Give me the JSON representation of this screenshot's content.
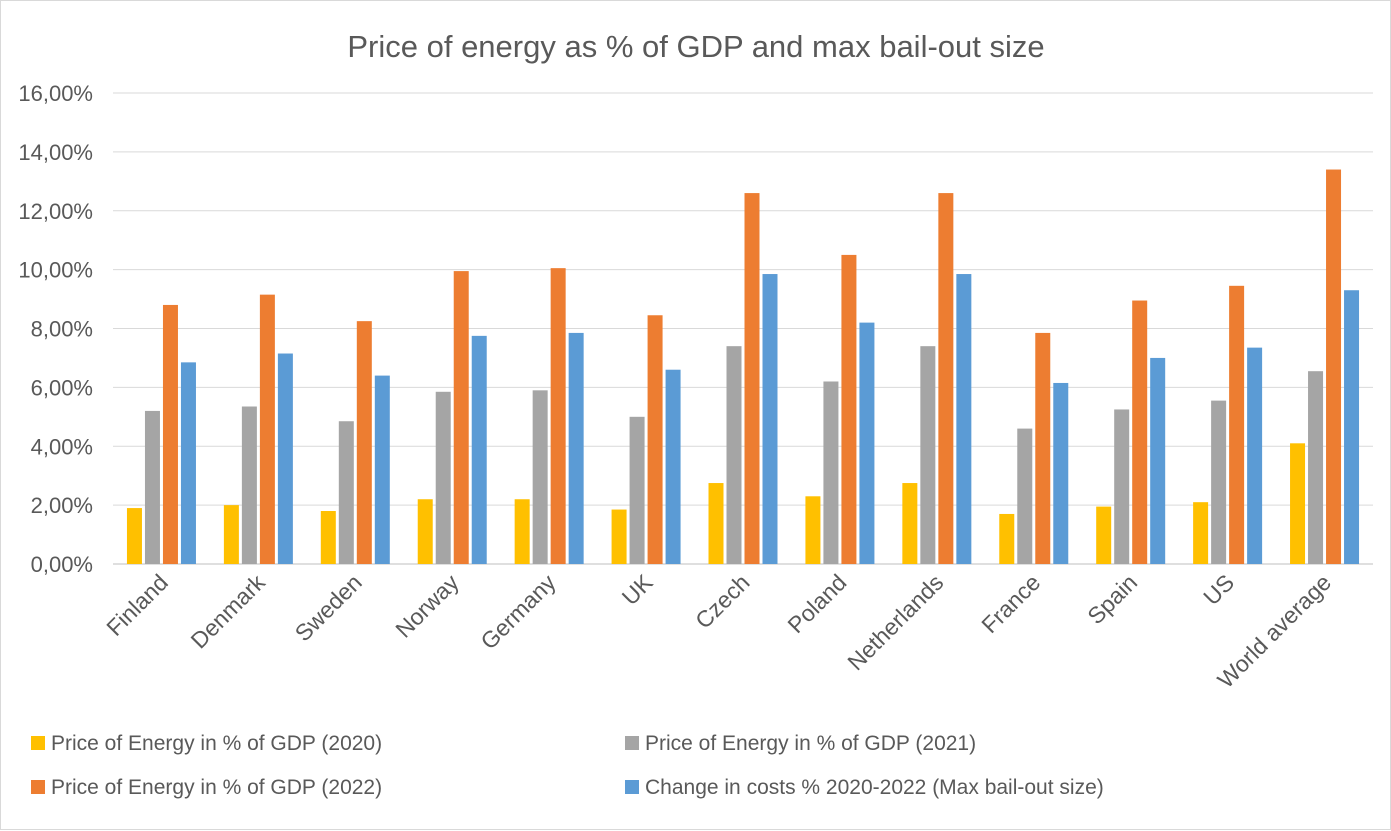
{
  "chart_data": {
    "type": "bar",
    "title": "Price of energy as % of GDP and max bail-out size",
    "categories": [
      "Finland",
      "Denmark",
      "Sweden",
      "Norway",
      "Germany",
      "UK",
      "Czech",
      "Poland",
      "Netherlands",
      "France",
      "Spain",
      "US",
      "World average"
    ],
    "series": [
      {
        "name": "Price of Energy in % of GDP (2020)",
        "color": "#ffc000",
        "values": [
          1.9,
          2.0,
          1.8,
          2.2,
          2.2,
          1.85,
          2.75,
          2.3,
          2.75,
          1.7,
          1.95,
          2.1,
          4.1
        ]
      },
      {
        "name": "Price of Energy in % of GDP (2021)",
        "color": "#a5a5a5",
        "values": [
          5.2,
          5.35,
          4.85,
          5.85,
          5.9,
          5.0,
          7.4,
          6.2,
          7.4,
          4.6,
          5.25,
          5.55,
          6.55
        ]
      },
      {
        "name": "Price of Energy in % of GDP (2022)",
        "color": "#ed7d31",
        "values": [
          8.8,
          9.15,
          8.25,
          9.95,
          10.05,
          8.45,
          12.6,
          10.5,
          12.6,
          7.85,
          8.95,
          9.45,
          13.4
        ]
      },
      {
        "name": "Change in costs % 2020-2022 (Max bail-out size)",
        "color": "#5b9bd5",
        "values": [
          6.85,
          7.15,
          6.4,
          7.75,
          7.85,
          6.6,
          9.85,
          8.2,
          9.85,
          6.15,
          7.0,
          7.35,
          9.3
        ]
      }
    ],
    "yticks": [
      "0,00%",
      "2,00%",
      "4,00%",
      "6,00%",
      "8,00%",
      "10,00%",
      "12,00%",
      "14,00%",
      "16,00%"
    ],
    "ylim": [
      0,
      16
    ],
    "grid": true,
    "legend_position": "bottom"
  }
}
